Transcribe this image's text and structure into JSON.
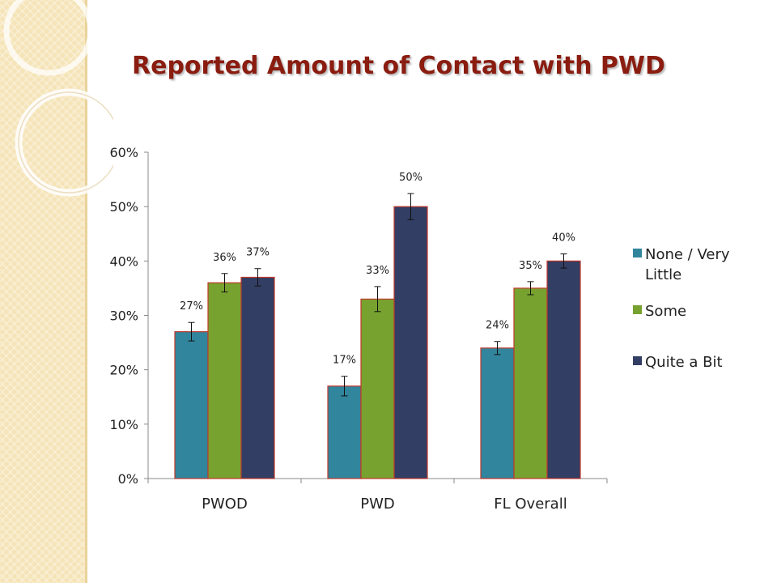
{
  "title": "Reported Amount of Contact with PWD",
  "colors": {
    "title": "#8a1c10",
    "bar_outline": "#c0392b"
  },
  "chart_data": {
    "type": "bar",
    "title": "Reported Amount of Contact with PWD",
    "categories": [
      "PWOD",
      "PWD",
      "FL Overall"
    ],
    "series": [
      {
        "name": "None / Very Little",
        "color": "#31859c",
        "values": [
          27,
          17,
          24
        ],
        "labels": [
          "27%",
          "17%",
          "24%"
        ],
        "error": [
          1.7,
          1.8,
          1.2
        ]
      },
      {
        "name": "Some",
        "color": "#77a22f",
        "values": [
          36,
          33,
          35
        ],
        "labels": [
          "36%",
          "33%",
          "35%"
        ],
        "error": [
          1.7,
          2.3,
          1.2
        ]
      },
      {
        "name": "Quite a Bit",
        "color": "#323e63",
        "values": [
          37,
          50,
          40
        ],
        "labels": [
          "37%",
          "50%",
          "40%"
        ],
        "error": [
          1.6,
          2.4,
          1.3
        ]
      }
    ],
    "yticks": [
      "0%",
      "10%",
      "20%",
      "30%",
      "40%",
      "50%",
      "60%"
    ],
    "ylim": [
      0,
      60
    ],
    "grid": false,
    "legend_position": "right",
    "xlabel": "",
    "ylabel": ""
  }
}
